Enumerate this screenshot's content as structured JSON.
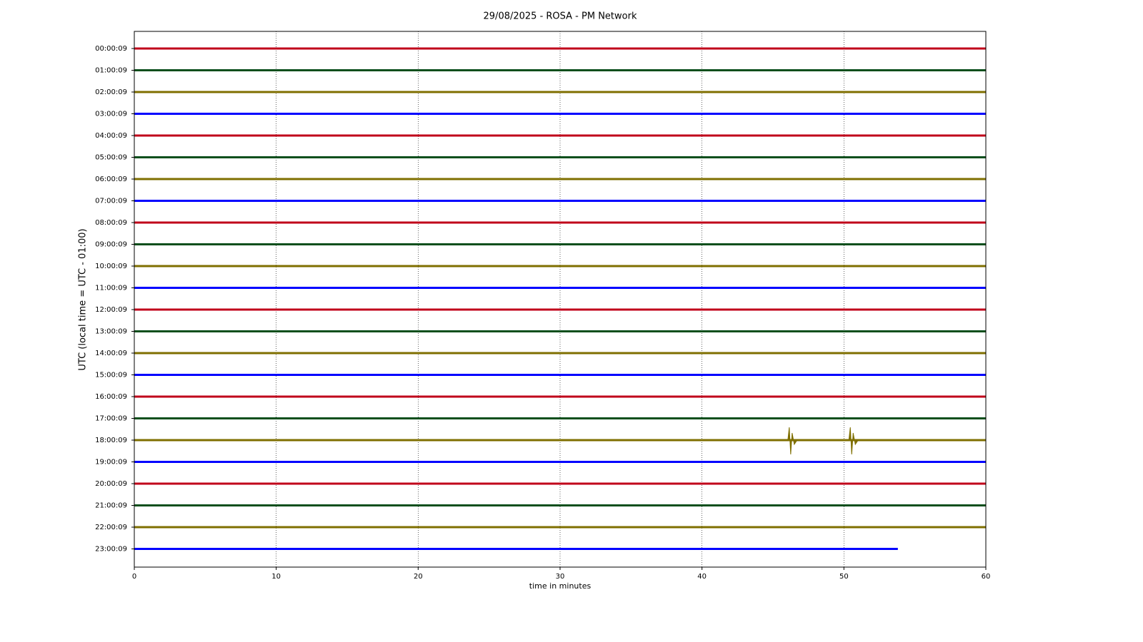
{
  "chart_data": {
    "type": "helicorder",
    "title": "29/08/2025 - ROSA - PM Network",
    "xlabel": "time in minutes",
    "ylabel": "UTC (local time = UTC - 01:00)",
    "xlim": [
      0,
      60
    ],
    "xticks": [
      0,
      10,
      20,
      30,
      40,
      50,
      60
    ],
    "grid": "x",
    "series": [
      {
        "name": "00:00:09",
        "color": "#c0001a",
        "x": [
          0,
          60
        ]
      },
      {
        "name": "01:00:09",
        "color": "#0b4f1c",
        "x": [
          0,
          60
        ]
      },
      {
        "name": "02:00:09",
        "color": "#7f6f00",
        "x": [
          0,
          60
        ]
      },
      {
        "name": "03:00:09",
        "color": "#0000ff",
        "x": [
          0,
          60
        ]
      },
      {
        "name": "04:00:09",
        "color": "#c0001a",
        "x": [
          0,
          60
        ]
      },
      {
        "name": "05:00:09",
        "color": "#0b4f1c",
        "x": [
          0,
          60
        ]
      },
      {
        "name": "06:00:09",
        "color": "#7f6f00",
        "x": [
          0,
          60
        ]
      },
      {
        "name": "07:00:09",
        "color": "#0000ff",
        "x": [
          0,
          60
        ]
      },
      {
        "name": "08:00:09",
        "color": "#c0001a",
        "x": [
          0,
          60
        ]
      },
      {
        "name": "09:00:09",
        "color": "#0b4f1c",
        "x": [
          0,
          60
        ]
      },
      {
        "name": "10:00:09",
        "color": "#7f6f00",
        "x": [
          0,
          60
        ]
      },
      {
        "name": "11:00:09",
        "color": "#0000ff",
        "x": [
          0,
          60
        ]
      },
      {
        "name": "12:00:09",
        "color": "#c0001a",
        "x": [
          0,
          60
        ]
      },
      {
        "name": "13:00:09",
        "color": "#0b4f1c",
        "x": [
          0,
          60
        ]
      },
      {
        "name": "14:00:09",
        "color": "#7f6f00",
        "x": [
          0,
          60
        ]
      },
      {
        "name": "15:00:09",
        "color": "#0000ff",
        "x": [
          0,
          60
        ]
      },
      {
        "name": "16:00:09",
        "color": "#c0001a",
        "x": [
          0,
          60
        ]
      },
      {
        "name": "17:00:09",
        "color": "#0b4f1c",
        "x": [
          0,
          60
        ]
      },
      {
        "name": "18:00:09",
        "color": "#7f6f00",
        "x": [
          0,
          60
        ],
        "events": [
          46.2,
          50.5
        ]
      },
      {
        "name": "19:00:09",
        "color": "#0000ff",
        "x": [
          0,
          60
        ]
      },
      {
        "name": "20:00:09",
        "color": "#c0001a",
        "x": [
          0,
          60
        ]
      },
      {
        "name": "21:00:09",
        "color": "#0b4f1c",
        "x": [
          0,
          60
        ]
      },
      {
        "name": "22:00:09",
        "color": "#7f6f00",
        "x": [
          0,
          60
        ]
      },
      {
        "name": "23:00:09",
        "color": "#0000ff",
        "x": [
          0,
          53.8
        ]
      }
    ]
  }
}
